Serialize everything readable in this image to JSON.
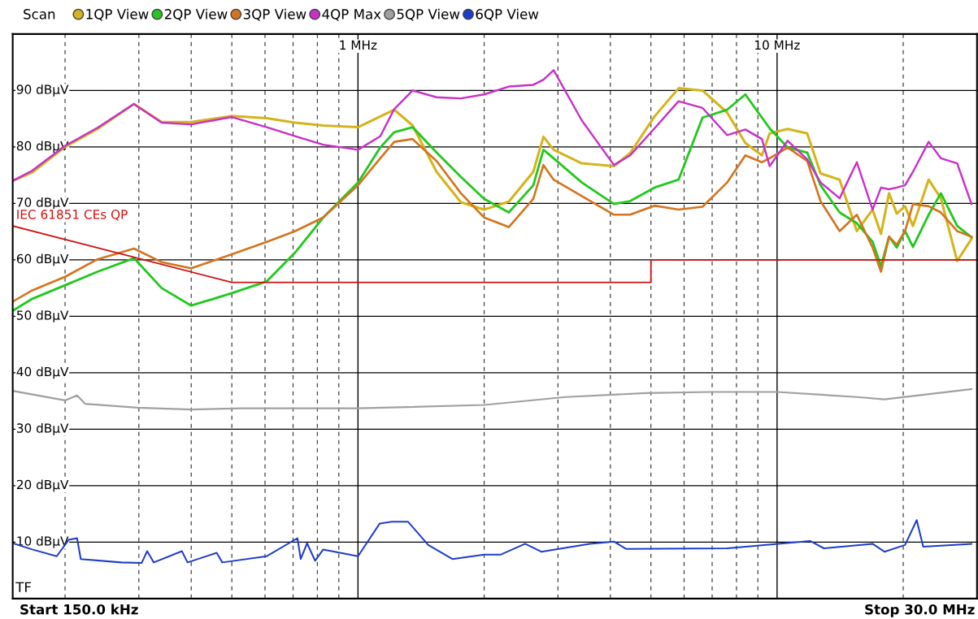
{
  "chart_data": {
    "type": "line",
    "legend_title": "Scan",
    "legend": "top",
    "grid": true,
    "log": "x",
    "marker": "none",
    "line_style": "solid",
    "x": [
      0.15,
      0.167,
      0.2,
      0.239,
      0.292,
      0.34,
      0.4,
      0.5,
      0.606,
      0.708,
      0.826,
      1.0,
      1.13,
      1.22,
      1.35,
      1.54,
      1.76,
      2.0,
      2.29,
      2.62,
      2.77,
      2.93,
      3.42,
      4.08,
      4.46,
      5.1,
      5.82,
      6.64,
      7.6,
      8.4,
      9.2,
      9.6,
      10.6,
      11.8,
      12.7,
      14.1,
      15.5,
      16.9,
      17.7,
      18.5,
      19.3,
      20.2,
      21.1,
      23.0,
      24.6,
      26.9,
      29.1
    ],
    "xlim": [
      0.15,
      30
    ],
    "xticks": [
      {
        "value": 0.2,
        "label": null
      },
      {
        "value": 0.3,
        "label": null
      },
      {
        "value": 0.4,
        "label": null
      },
      {
        "value": 0.5,
        "label": null
      },
      {
        "value": 0.6,
        "label": null
      },
      {
        "value": 0.7,
        "label": null
      },
      {
        "value": 0.8,
        "label": null
      },
      {
        "value": 0.9,
        "label": null
      },
      {
        "value": 1,
        "label": "1 MHz"
      },
      {
        "value": 2,
        "label": null
      },
      {
        "value": 3,
        "label": null
      },
      {
        "value": 4,
        "label": null
      },
      {
        "value": 5,
        "label": null
      },
      {
        "value": 6,
        "label": null
      },
      {
        "value": 7,
        "label": null
      },
      {
        "value": 8,
        "label": null
      },
      {
        "value": 9,
        "label": null
      },
      {
        "value": 10,
        "label": "10 MHz"
      },
      {
        "value": 20,
        "label": null
      }
    ],
    "ylim": [
      0,
      100
    ],
    "yticks": [
      {
        "value": 10,
        "label": "10 dBµV"
      },
      {
        "value": 20,
        "label": "20 dBµV"
      },
      {
        "value": 30,
        "label": "30 dBµV"
      },
      {
        "value": 40,
        "label": "40 dBµV"
      },
      {
        "value": 50,
        "label": "50 dBµV"
      },
      {
        "value": 60,
        "label": "60 dBµV"
      },
      {
        "value": 70,
        "label": "70 dBµV"
      },
      {
        "value": 80,
        "label": "80 dBµV"
      },
      {
        "value": 90,
        "label": "90 dBµV"
      }
    ],
    "series": [
      {
        "name": "1QP View",
        "color": "#d4b41c",
        "values": [
          74,
          75.5,
          80,
          83.2,
          87.6,
          84.4,
          84.4,
          85.5,
          85.1,
          84.3,
          83.8,
          83.5,
          85.4,
          86.6,
          83.8,
          75.6,
          70.2,
          68.9,
          70.3,
          75.6,
          81.8,
          79.5,
          77.1,
          76.6,
          78.9,
          85.4,
          90.4,
          90,
          86.1,
          80.7,
          78.5,
          82.4,
          83.2,
          82.4,
          75.3,
          74.2,
          65.1,
          68.9,
          64.6,
          71.8,
          68.2,
          69.5,
          66,
          74.2,
          70.9,
          59.8,
          63.7
        ]
      },
      {
        "name": "2QP View",
        "color": "#22c81e",
        "values": [
          51,
          53.1,
          55.5,
          57.9,
          60.3,
          55,
          51.9,
          54.1,
          56.2,
          61.3,
          67.5,
          73.7,
          79.9,
          82.6,
          83.5,
          79,
          74.7,
          70.8,
          68.4,
          73.2,
          79.5,
          78,
          73.7,
          69.9,
          70.4,
          72.8,
          74.2,
          85.2,
          86.6,
          89.3,
          85.2,
          83.3,
          79.9,
          79,
          73.2,
          68.4,
          66.5,
          63.2,
          58.9,
          64.1,
          62.2,
          65.1,
          62.3,
          68,
          71.8,
          66,
          64
        ]
      },
      {
        "name": "3QP View",
        "color": "#d4741e",
        "values": [
          52.6,
          54.6,
          57,
          60.1,
          62,
          59.6,
          58.5,
          61,
          63.2,
          65.1,
          67.5,
          73.2,
          78,
          80.9,
          81.4,
          77.5,
          71.8,
          67.5,
          65.8,
          70.8,
          76.8,
          74.2,
          71.3,
          68,
          68,
          69.6,
          68.9,
          69.4,
          73.7,
          78.5,
          77.3,
          78,
          79.9,
          77.5,
          70.4,
          65.1,
          68,
          62.2,
          57.9,
          64.1,
          62.7,
          65.1,
          69.9,
          69.5,
          68.4,
          65.1,
          64.1
        ]
      },
      {
        "name": "4QP Max",
        "color": "#c830c8",
        "values": [
          74,
          75.8,
          80.2,
          83.4,
          87.6,
          84.3,
          84,
          85.3,
          83.5,
          81.9,
          80.4,
          79.5,
          81.9,
          86.7,
          90,
          88.8,
          88.6,
          89.3,
          90.7,
          91,
          91.9,
          93.6,
          84.7,
          76.8,
          78.5,
          83.3,
          88.1,
          86.9,
          82.1,
          83.1,
          81.4,
          76.6,
          81.1,
          77.8,
          73.7,
          70.9,
          77.3,
          68.9,
          72.8,
          72.5,
          72.8,
          73.2,
          75.6,
          80.9,
          78,
          77.1,
          69.9
        ]
      },
      {
        "name": "5QP View",
        "color": "#a0a0a0",
        "x": [
          0.15,
          0.2,
          0.2136,
          0.2233,
          0.298,
          0.4,
          0.53,
          1.0,
          2.0,
          3.13,
          4.87,
          6.95,
          10,
          15.5,
          18.04,
          29.1
        ],
        "values": [
          36.8,
          35.1,
          36,
          34.5,
          33.8,
          33.5,
          33.7,
          33.7,
          34.3,
          35.7,
          36.4,
          36.6,
          36.6,
          35.7,
          35.3,
          37.1
        ]
      },
      {
        "name": "6QP View",
        "color": "#1e3ccc",
        "x": [
          0.15,
          0.167,
          0.191,
          0.204,
          0.2136,
          0.218,
          0.2725,
          0.3045,
          0.314,
          0.3256,
          0.38,
          0.392,
          0.46,
          0.4745,
          0.606,
          0.717,
          0.73,
          0.756,
          0.79,
          0.826,
          1.0,
          1.127,
          1.205,
          1.317,
          1.471,
          1.68,
          2.0,
          2.193,
          2.505,
          2.737,
          3.572,
          4.08,
          4.36,
          7.6,
          11.99,
          12.94,
          16.9,
          18.04,
          20.2,
          21.54,
          22.32,
          29.1
        ],
        "values": [
          9.8,
          8.7,
          7.5,
          10.4,
          10.7,
          7,
          6.4,
          6.3,
          8.4,
          6.4,
          8.4,
          6.4,
          8.1,
          6.4,
          7.5,
          10.7,
          7,
          9.8,
          6.7,
          8.7,
          7.5,
          13.3,
          13.6,
          13.6,
          9.5,
          7,
          7.8,
          7.8,
          9.7,
          8.3,
          9.7,
          10.1,
          8.8,
          8.9,
          10.2,
          8.9,
          9.7,
          8.3,
          9.5,
          13.9,
          9.2,
          9.7
        ]
      },
      {
        "name": "IEC 61851 CEs QP",
        "color": "#d01010",
        "x": [
          0.15,
          0.5,
          5,
          5,
          30
        ],
        "values": [
          66,
          56,
          56,
          60,
          60
        ]
      }
    ],
    "annotations": [
      "Start 150.0 kHz",
      "Stop 30.0 MHz",
      "TF"
    ]
  }
}
